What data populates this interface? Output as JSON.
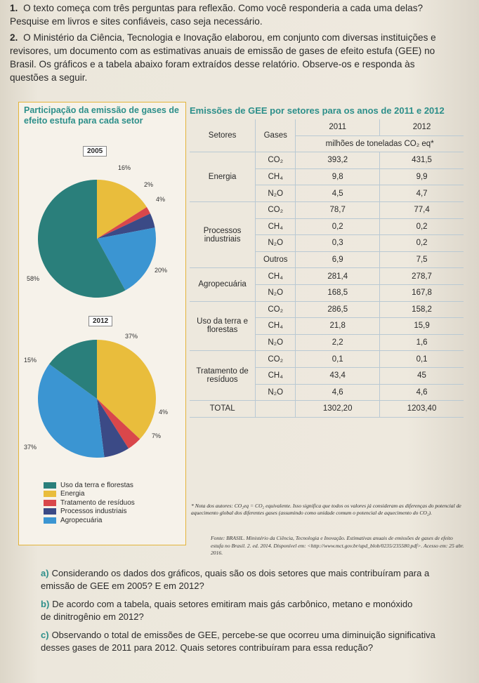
{
  "questions": {
    "q1_num": "1.",
    "q1_text": "O texto começa com três perguntas para reflexão. Como você responderia a cada uma delas? Pesquise em livros e sites confiáveis, caso seja necessário.",
    "q2_num": "2.",
    "q2_text": "O Ministério da Ciência, Tecnologia e Inovação elaborou, em conjunto com diversas instituições e revisores, um documento com as estimativas anuais de emissão de gases de efeito estufa (GEE) no Brasil. Os gráficos e a tabela abaixo foram extraídos desse relatório. Observe-os e responda às questões a seguir."
  },
  "left_panel": {
    "title": "Participação da emissão de gases de efeito estufa para cada setor",
    "legend": [
      {
        "label": "Uso da terra e florestas",
        "color": "#2a7f7b"
      },
      {
        "label": "Energia",
        "color": "#e9bd3c"
      },
      {
        "label": "Tratamento de resíduos",
        "color": "#d9474b"
      },
      {
        "label": "Processos industriais",
        "color": "#3b4a86"
      },
      {
        "label": "Agropecuária",
        "color": "#3b95d2"
      }
    ]
  },
  "chart_data": [
    {
      "type": "pie",
      "title": "2005",
      "categories": [
        "Energia",
        "Tratamento de resíduos",
        "Processos industriais",
        "Agropecuária",
        "Uso da terra e florestas"
      ],
      "values": [
        16,
        2,
        4,
        20,
        58
      ],
      "labels": [
        "16%",
        "2%",
        "4%",
        "20%",
        "58%"
      ]
    },
    {
      "type": "pie",
      "title": "2012",
      "categories": [
        "Energia",
        "Tratamento de resíduos",
        "Processos industriais",
        "Agropecuária",
        "Uso da terra e florestas"
      ],
      "values": [
        37,
        4,
        7,
        37,
        15
      ],
      "labels": [
        "37%",
        "4%",
        "7%",
        "37%",
        "15%"
      ]
    }
  ],
  "table": {
    "title": "Emissões de GEE por setores para os anos de 2011 e 2012",
    "col_setores": "Setores",
    "col_gases": "Gases",
    "col_2011": "2011",
    "col_2012": "2012",
    "unit": "milhões de toneladas CO₂ eq*",
    "sectors": [
      {
        "name": "Energia",
        "rows": [
          {
            "gas": "CO₂",
            "v2011": "393,2",
            "v2012": "431,5"
          },
          {
            "gas": "CH₄",
            "v2011": "9,8",
            "v2012": "9,9"
          },
          {
            "gas": "N₂O",
            "v2011": "4,5",
            "v2012": "4,7"
          }
        ]
      },
      {
        "name": "Processos industriais",
        "rows": [
          {
            "gas": "CO₂",
            "v2011": "78,7",
            "v2012": "77,4"
          },
          {
            "gas": "CH₄",
            "v2011": "0,2",
            "v2012": "0,2"
          },
          {
            "gas": "N₂O",
            "v2011": "0,3",
            "v2012": "0,2"
          },
          {
            "gas": "Outros",
            "v2011": "6,9",
            "v2012": "7,5"
          }
        ]
      },
      {
        "name": "Agropecuária",
        "rows": [
          {
            "gas": "CH₄",
            "v2011": "281,4",
            "v2012": "278,7"
          },
          {
            "gas": "N₂O",
            "v2011": "168,5",
            "v2012": "167,8"
          }
        ]
      },
      {
        "name": "Uso da terra e florestas",
        "rows": [
          {
            "gas": "CO₂",
            "v2011": "286,5",
            "v2012": "158,2"
          },
          {
            "gas": "CH₄",
            "v2011": "21,8",
            "v2012": "15,9"
          },
          {
            "gas": "N₂O",
            "v2011": "2,2",
            "v2012": "1,6"
          }
        ]
      },
      {
        "name": "Tratamento de resíduos",
        "rows": [
          {
            "gas": "CO₂",
            "v2011": "0,1",
            "v2012": "0,1"
          },
          {
            "gas": "CH₄",
            "v2011": "43,4",
            "v2012": "45"
          },
          {
            "gas": "N₂O",
            "v2011": "4,6",
            "v2012": "4,6"
          }
        ]
      }
    ],
    "total_label": "TOTAL",
    "total_2011": "1302,20",
    "total_2012": "1203,40",
    "note": "* Nota dos autores: CO₂eq = CO₂ equivalente. Isso significa que todos os valores já consideram as diferenças do potencial de aquecimento global dos diferentes gases (assumindo como unidade comum o potencial de aquecimento do CO₂).",
    "source": "Fonte: BRASIL. Ministério da Ciência, Tecnologia e Inovação. Estimativas anuais de emissões de gases de efeito estufa no Brasil. 2. ed. 2014. Disponível em: <http://www.mct.gov.br/upd_blob/0235/235580.pdf>. Acesso em: 25 abr. 2016."
  },
  "subquestions": [
    {
      "letter": "a)",
      "text": "Considerando os dados dos gráficos, quais são os dois setores que mais contribuíram para a emissão de GEE em 2005? E em 2012?"
    },
    {
      "letter": "b)",
      "text": "De acordo com a tabela, quais setores emitiram mais gás carbônico, metano e monóxido de dinitrogênio em 2012?"
    },
    {
      "letter": "c)",
      "text": "Observando o total de emissões de GEE, percebe-se que ocorreu uma diminuição significativa desses gases de 2011 para 2012. Quais setores contribuíram para essa redução?"
    }
  ]
}
